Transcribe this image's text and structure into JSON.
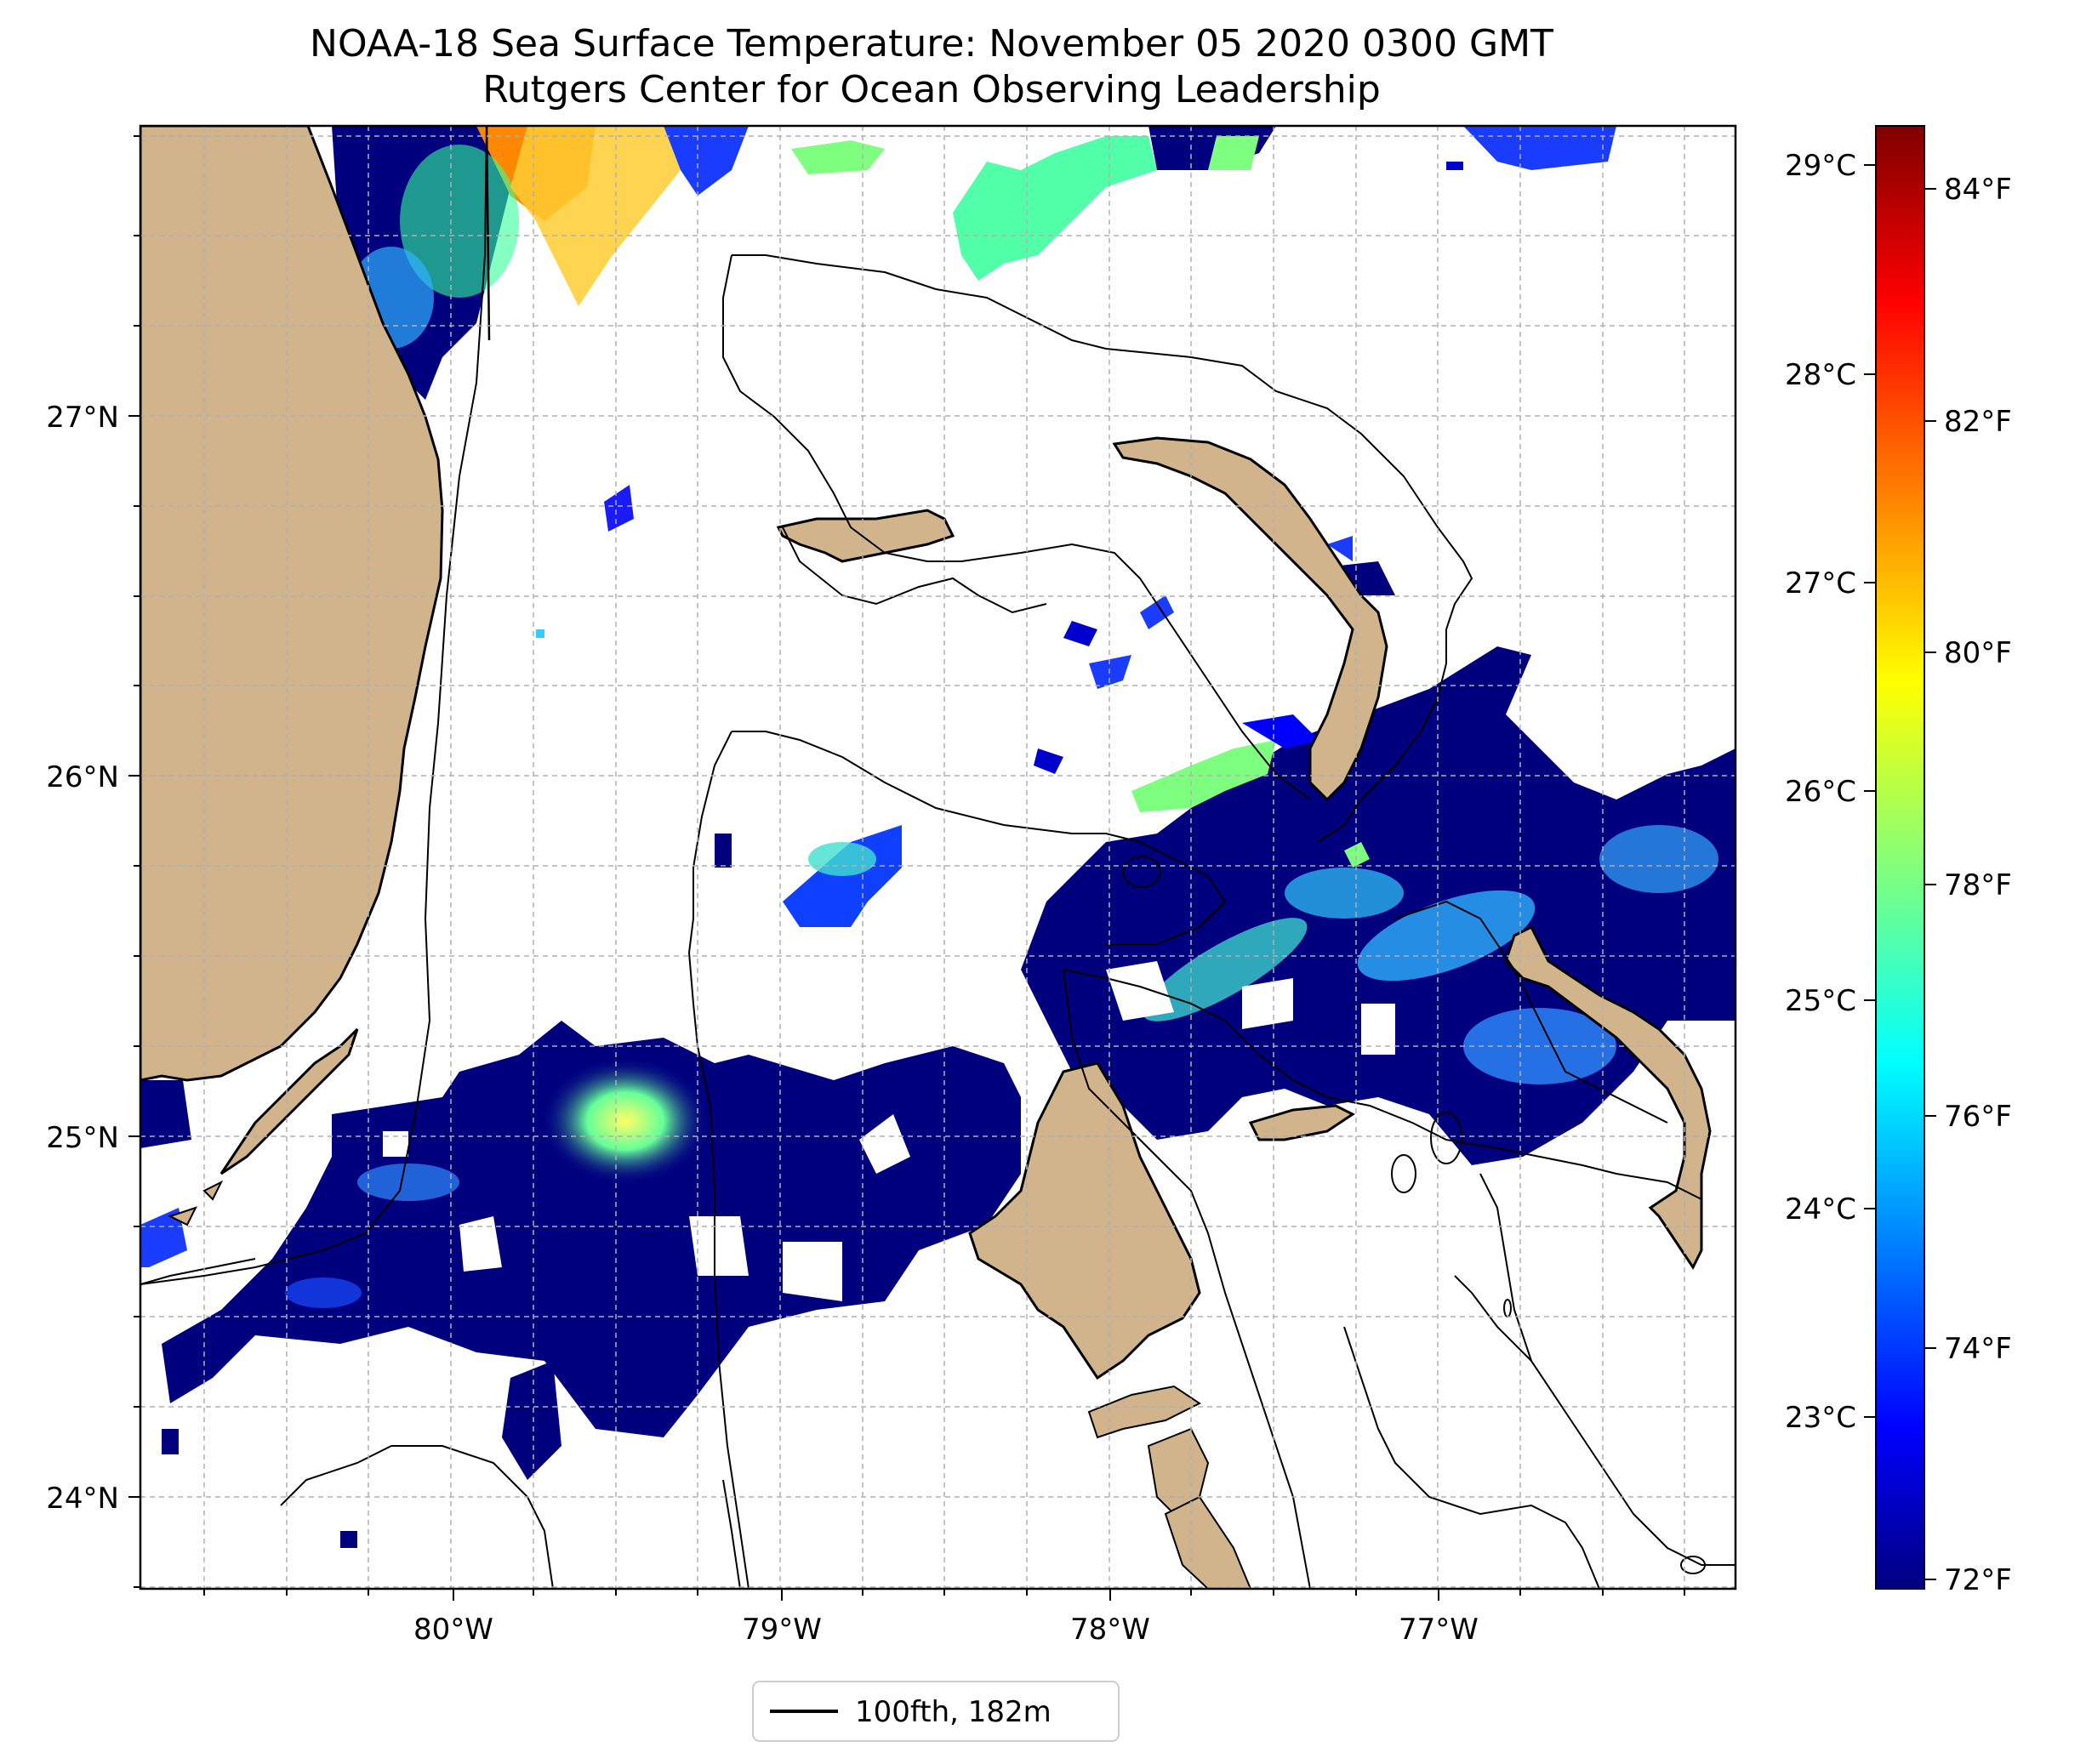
{
  "title": "NOAA-18 Sea Surface Temperature: November 05 2020 0300 GMT",
  "subtitle": "Rutgers Center for Ocean Observing Leadership",
  "map": {
    "lat_labels": [
      "27°N",
      "26°N",
      "25°N",
      "24°N"
    ],
    "lon_labels": [
      "80°W",
      "79°W",
      "78°W",
      "77°W"
    ],
    "land_color": "#d2b48c",
    "gridlines": true,
    "gridline_style": "dashed",
    "extent_approx": {
      "lon": [
        -80.95,
        -76.1
      ],
      "lat": [
        23.75,
        27.8
      ]
    }
  },
  "colorbar": {
    "colormap": "jet",
    "celsius_labels": [
      "29°C",
      "28°C",
      "27°C",
      "26°C",
      "25°C",
      "24°C",
      "23°C"
    ],
    "fahrenheit_labels": [
      "84°F",
      "82°F",
      "80°F",
      "78°F",
      "76°F",
      "74°F",
      "72°F"
    ]
  },
  "legend": {
    "entries": [
      {
        "label": "100fth, 182m",
        "line_color": "#000000"
      }
    ],
    "placement": "bottom-center"
  }
}
